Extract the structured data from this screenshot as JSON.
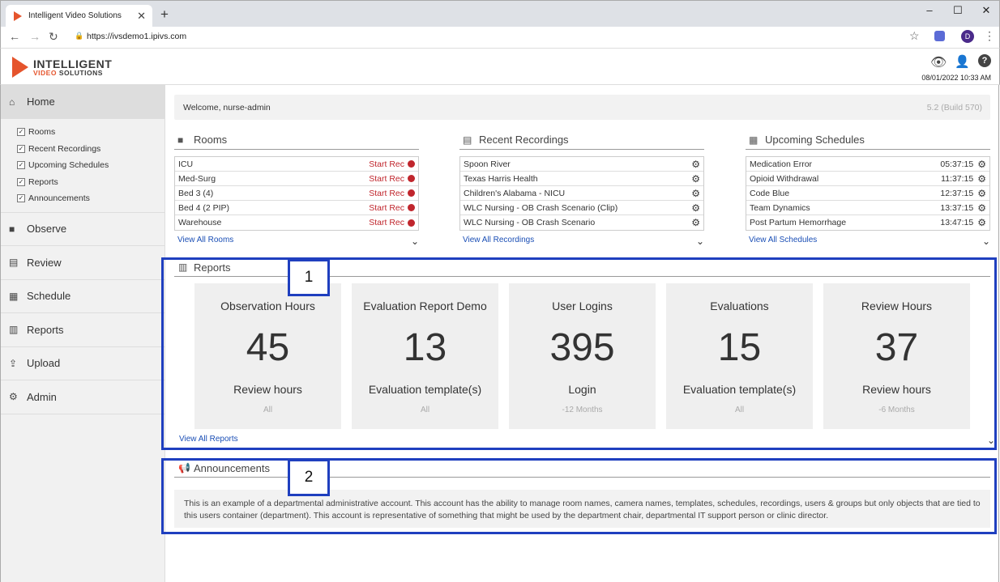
{
  "browser": {
    "tab_title": "Intelligent Video Solutions",
    "url": "https://ivsdemo1.ipivs.com",
    "profile_initial": "D"
  },
  "header": {
    "logo_line1": "INTELLIGENT",
    "logo_line2_a": "VIDEO",
    "logo_line2_b": " SOLUTIONS",
    "datetime": "08/01/2022 10:33 AM"
  },
  "sidebar": {
    "home_label": "Home",
    "sub_items": [
      "Rooms",
      "Recent Recordings",
      "Upcoming Schedules",
      "Reports",
      "Announcements"
    ],
    "items": [
      "Observe",
      "Review",
      "Schedule",
      "Reports",
      "Upload",
      "Admin"
    ]
  },
  "welcome": {
    "text": "Welcome, nurse-admin",
    "build": "5.2 (Build 570)"
  },
  "rooms": {
    "title": "Rooms",
    "start_rec_label": "Start Rec",
    "list": [
      "ICU",
      "Med-Surg",
      "Bed 3 (4)",
      "Bed 4 (2 PIP)",
      "Warehouse"
    ],
    "view_all": "View All Rooms"
  },
  "recordings": {
    "title": "Recent Recordings",
    "list": [
      "Spoon River",
      "Texas Harris Health",
      "Children's Alabama - NICU",
      "WLC Nursing - OB Crash Scenario (Clip)",
      "WLC Nursing - OB Crash Scenario"
    ],
    "view_all": "View All Recordings"
  },
  "schedules": {
    "title": "Upcoming Schedules",
    "list": [
      {
        "name": "Medication Error",
        "time": "05:37:15"
      },
      {
        "name": "Opioid Withdrawal",
        "time": "11:37:15"
      },
      {
        "name": "Code Blue",
        "time": "12:37:15"
      },
      {
        "name": "Team Dynamics",
        "time": "13:37:15"
      },
      {
        "name": "Post Partum Hemorrhage",
        "time": "13:47:15"
      }
    ],
    "view_all": "View All Schedules"
  },
  "reports": {
    "title": "Reports",
    "cards": [
      {
        "title": "Observation Hours",
        "value": "45",
        "unit": "Review hours",
        "scope": "All"
      },
      {
        "title": "Evaluation Report Demo",
        "value": "13",
        "unit": "Evaluation template(s)",
        "scope": "All"
      },
      {
        "title": "User Logins",
        "value": "395",
        "unit": "Login",
        "scope": "-12 Months"
      },
      {
        "title": "Evaluations",
        "value": "15",
        "unit": "Evaluation template(s)",
        "scope": "All"
      },
      {
        "title": "Review Hours",
        "value": "37",
        "unit": "Review hours",
        "scope": "-6 Months"
      }
    ],
    "view_all": "View All Reports"
  },
  "announcements": {
    "title": "Announcements",
    "text": "This is an example of a departmental administrative account. This account has the ability to manage room names, camera names, templates, schedules, recordings, users & groups but only objects that are tied to this users container (department). This account is representative of something that might be used by the department chair, departmental IT support person or clinic director."
  },
  "callouts": {
    "label1": "1",
    "label2": "2",
    "color": "#1f3fbf"
  }
}
